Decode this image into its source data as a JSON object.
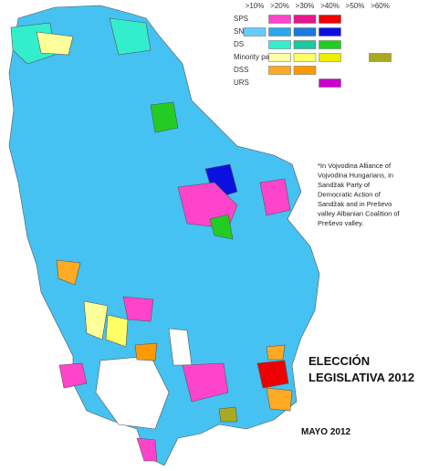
{
  "legend": {
    "columns": [
      ">10%",
      ">20%",
      ">30%",
      ">40%",
      ">50%",
      ">60%"
    ],
    "rows": [
      {
        "label": "SPS",
        "colors": [
          null,
          "#ff44cc",
          "#e8168c",
          "#ee0000",
          null,
          null
        ]
      },
      {
        "label": "SNS",
        "colors": [
          "#66ccff",
          "#2aa8ee",
          "#1a7ae0",
          "#0a10e0",
          null,
          null
        ]
      },
      {
        "label": "DS",
        "colors": [
          null,
          "#33eecc",
          "#19c9a0",
          "#22cc22",
          null,
          null
        ]
      },
      {
        "label": "Minority party*",
        "colors": [
          null,
          "#ffffaa",
          "#ffff66",
          "#eeee00",
          null,
          "#aaaa22"
        ]
      },
      {
        "label": "DSS",
        "colors": [
          null,
          "#ffaa22",
          "#ff9900",
          null,
          null,
          null
        ]
      },
      {
        "label": "URS",
        "colors": [
          null,
          null,
          null,
          "#cc00cc",
          null,
          null
        ]
      }
    ]
  },
  "footnote": [
    "*In Vojvodina Alliance of",
    "Vojvodina Hungarians, in",
    "Sandžak Party of",
    "Democratic Action of",
    "Sandžak and in Preševo",
    "valley Albanian Coalition of",
    "Preševo valley."
  ],
  "title": [
    "ELECCIÓN",
    "LEGISLATIVA 2012"
  ],
  "date": "MAYO 2012"
}
